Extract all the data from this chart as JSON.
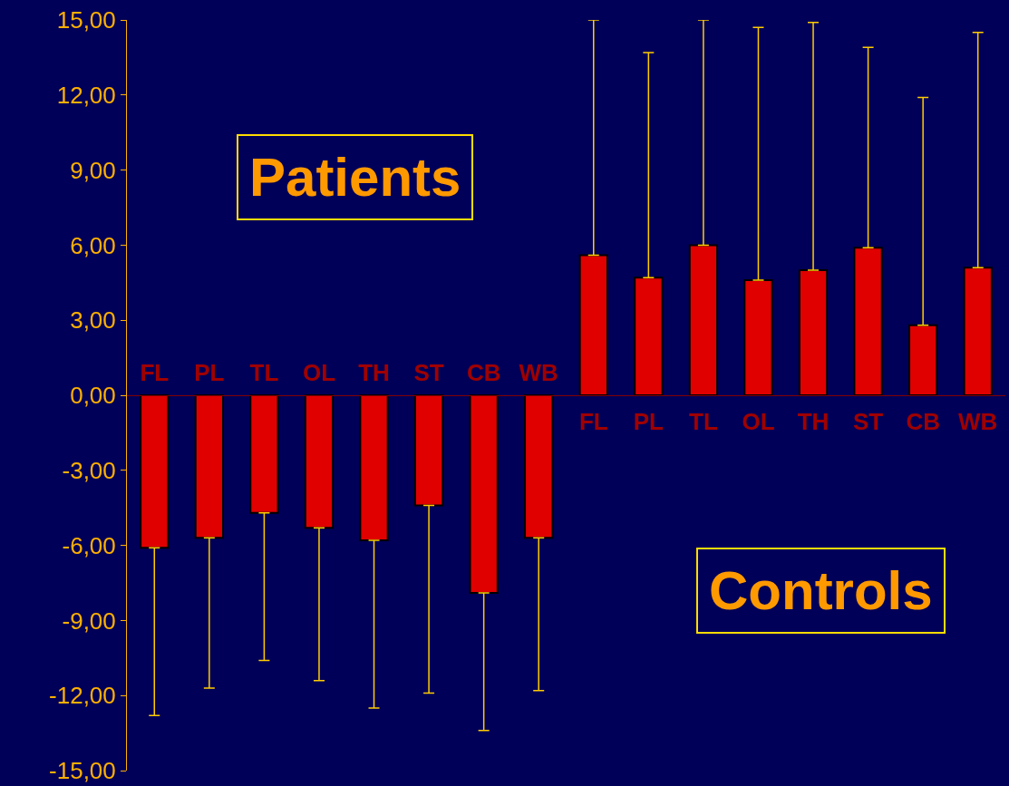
{
  "chart_data": {
    "type": "bar",
    "categories": [
      "FL",
      "PL",
      "TL",
      "OL",
      "TH",
      "ST",
      "CB",
      "WB",
      "FL",
      "PL",
      "TL",
      "OL",
      "TH",
      "ST",
      "CB",
      "WB"
    ],
    "series": [
      {
        "color": "#e00000",
        "values": [
          -6.1,
          -5.7,
          -4.7,
          -5.3,
          -5.8,
          -4.4,
          -7.9,
          -5.7,
          null,
          null,
          null,
          null,
          null,
          null,
          null,
          null
        ],
        "errors": [
          [
            -12.8,
            -6.1
          ],
          [
            -11.7,
            -5.7
          ],
          [
            -10.6,
            -4.7
          ],
          [
            -11.4,
            -5.3
          ],
          [
            -12.5,
            -5.8
          ],
          [
            -11.9,
            -4.4
          ],
          [
            -13.4,
            -7.9
          ],
          [
            -11.8,
            -5.7
          ],
          null,
          null,
          null,
          null,
          null,
          null,
          null,
          null
        ]
      },
      {
        "color": "#e00000",
        "values": [
          null,
          null,
          null,
          null,
          null,
          null,
          null,
          null,
          5.6,
          4.7,
          6.0,
          4.6,
          5.0,
          5.9,
          2.8,
          5.1
        ],
        "errors": [
          null,
          null,
          null,
          null,
          null,
          null,
          null,
          null,
          [
            5.6,
            15.0
          ],
          [
            4.7,
            13.7
          ],
          [
            6.0,
            15.0
          ],
          [
            4.6,
            14.7
          ],
          [
            5.0,
            14.9
          ],
          [
            5.9,
            13.9
          ],
          [
            2.8,
            11.9
          ],
          [
            5.1,
            14.5
          ]
        ]
      }
    ],
    "ylim": [
      -15,
      15
    ],
    "yticks": [
      {
        "value": -15,
        "label": "-15,00"
      },
      {
        "value": -12,
        "label": "-12,00"
      },
      {
        "value": -9,
        "label": "-9,00"
      },
      {
        "value": -6,
        "label": "-6,00"
      },
      {
        "value": -3,
        "label": "-3,00"
      },
      {
        "value": 0,
        "label": "0,00"
      },
      {
        "value": 3,
        "label": "3,00"
      },
      {
        "value": 6,
        "label": "6,00"
      },
      {
        "value": 9,
        "label": "9,00"
      },
      {
        "value": 12,
        "label": "12,00"
      },
      {
        "value": 15,
        "label": "15,00"
      }
    ],
    "annotations": [
      "Patients",
      "Controls"
    ],
    "grid": false
  }
}
